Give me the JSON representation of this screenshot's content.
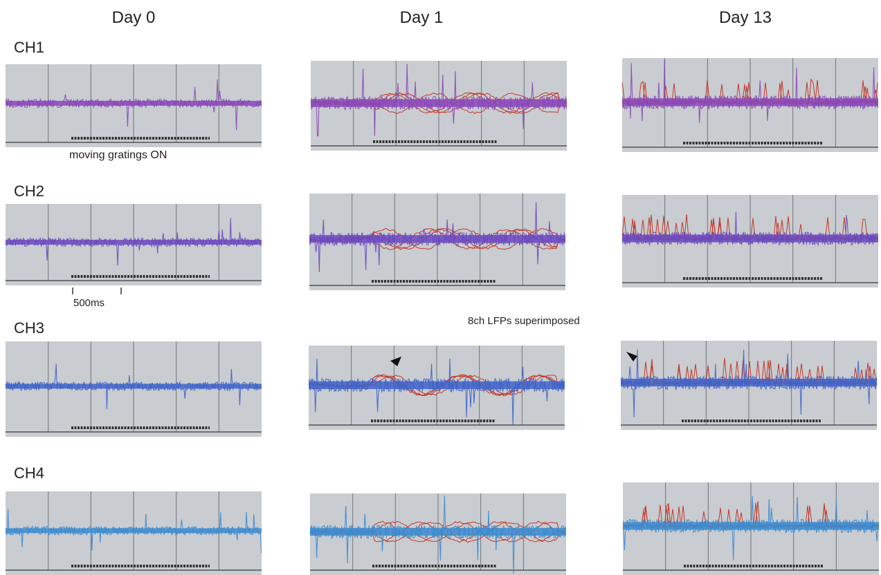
{
  "days": [
    "Day 0",
    "Day 1",
    "Day 13"
  ],
  "channels": [
    "CH1",
    "CH2",
    "CH3",
    "CH4"
  ],
  "annotations": {
    "stimulus": "moving gratings ON",
    "scale_bar": "500ms",
    "overlay": "8ch  LFPs superimposed"
  },
  "colors": {
    "panel_bg": "#c9ccd0",
    "gridline": "#6f7379",
    "baseline": "#3a3a3a",
    "stimulus_bar": "#333333",
    "lfp_overlay": "#c0392b",
    "ch1": "#8a47b8",
    "ch2": "#6a49be",
    "ch3": "#3f63c9",
    "ch4": "#3b8bd0"
  }
}
